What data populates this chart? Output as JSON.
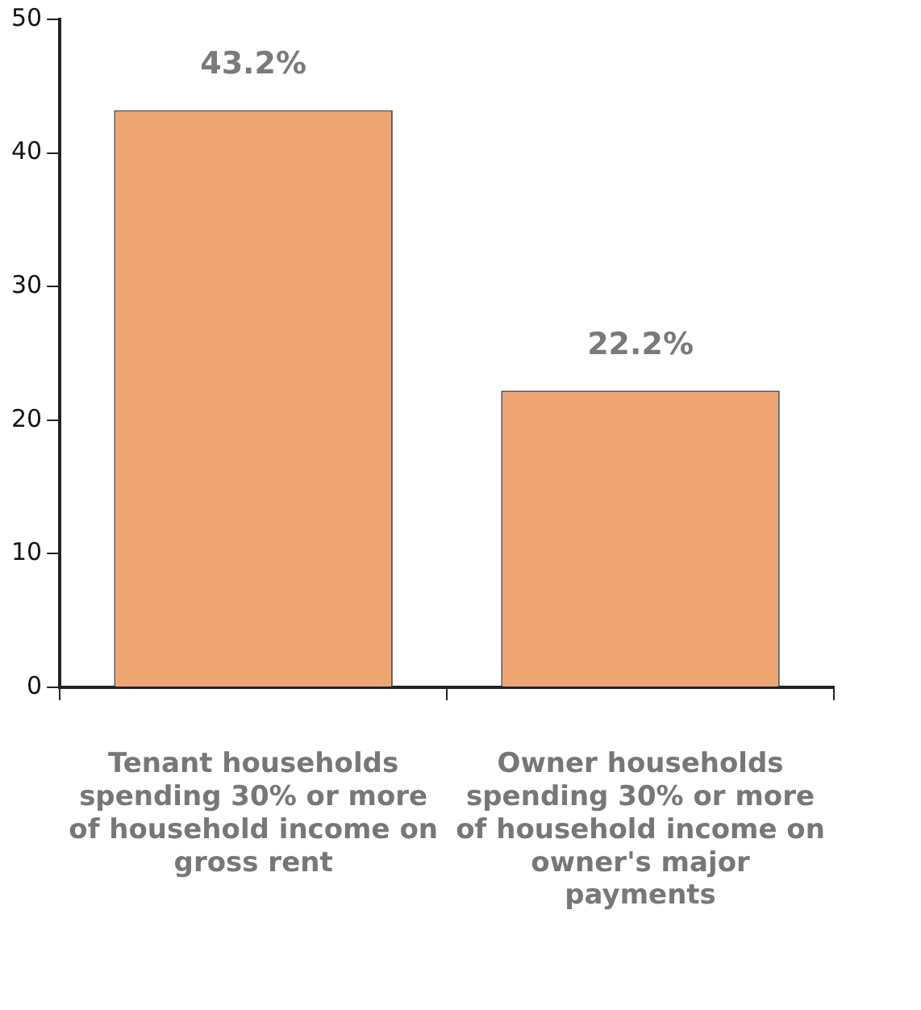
{
  "chart_data": {
    "type": "bar",
    "categories": [
      "Tenant households spending 30% or more of household income on gross rent",
      "Owner households spending 30% or more of household income on owner's major payments"
    ],
    "values": [
      43.2,
      22.2
    ],
    "color": "#eea572",
    "value_labels": [
      "43.2%",
      "22.2%"
    ],
    "ylim": [
      0,
      50
    ],
    "yticks": [
      0,
      10,
      20,
      30,
      40,
      50
    ],
    "grid": false,
    "legend": false
  }
}
